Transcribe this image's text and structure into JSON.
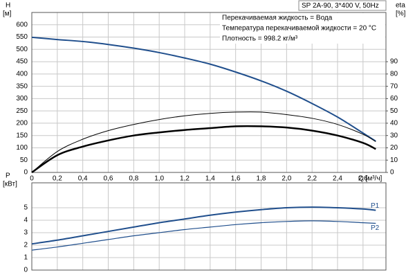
{
  "chart_data": [
    {
      "type": "line",
      "title": "SP 2A-90, 3*400 V, 50Hz",
      "annotations": [
        "Перекачиваемая жидкость = Вода",
        "Температура перекачиваемой жидкости = 20 °C",
        "Плотность = 998.2 кг/м³"
      ],
      "ylabel": "H",
      "yunit": "[м]",
      "y2label": "eta",
      "y2unit": "[%]",
      "xlabel": "Q [м³/ч]",
      "x": [
        0,
        0.2,
        0.4,
        0.6,
        0.8,
        1.0,
        1.2,
        1.4,
        1.6,
        1.8,
        2.0,
        2.2,
        2.4,
        2.6,
        2.7
      ],
      "xlim": [
        0,
        2.78
      ],
      "xticks": [
        0,
        {
          "value": 0.2,
          "label": "0,2"
        },
        {
          "value": 0.4,
          "label": "0,4"
        },
        {
          "value": 0.6,
          "label": "0,6"
        },
        {
          "value": 0.8,
          "label": "0,8"
        },
        {
          "value": 1.0,
          "label": "1,0"
        },
        {
          "value": 1.2,
          "label": "1,2"
        },
        {
          "value": 1.4,
          "label": "1,4"
        },
        {
          "value": 1.6,
          "label": "1,6"
        },
        {
          "value": 1.8,
          "label": "1,8"
        },
        {
          "value": 2.0,
          "label": "2,0"
        },
        {
          "value": 2.2,
          "label": "2,2"
        },
        {
          "value": 2.4,
          "label": "2,4"
        },
        {
          "value": 2.6,
          "label": "2,6"
        }
      ],
      "ylim": [
        0,
        650
      ],
      "yticks": [
        0,
        50,
        100,
        150,
        200,
        250,
        300,
        350,
        400,
        450,
        500,
        550,
        600
      ],
      "y2lim": [
        0,
        130
      ],
      "y2ticks": [
        0,
        10,
        20,
        30,
        40,
        50,
        60,
        70,
        80,
        90
      ],
      "grid": true,
      "series": [
        {
          "color": "#1f4e8c",
          "values": [
            549,
            540,
            532,
            520,
            505,
            487,
            465,
            440,
            408,
            372,
            330,
            280,
            225,
            160,
            127
          ]
        },
        {
          "color": "#000000",
          "axis": "y2",
          "values": [
            0,
            17,
            27,
            34,
            39,
            43,
            46,
            48,
            49,
            49,
            47,
            44,
            39,
            31,
            25
          ]
        },
        {
          "color": "#000000",
          "axis": "y2",
          "values": [
            0,
            14,
            21,
            26,
            30,
            32.5,
            34.5,
            36,
            37.5,
            37.5,
            36.5,
            34,
            30,
            24,
            19
          ]
        }
      ]
    },
    {
      "type": "line",
      "ylabel": "P",
      "yunit": "[кВт]",
      "ylim": [
        0,
        7
      ],
      "yticks": [
        0,
        1,
        2,
        3,
        4,
        5
      ],
      "grid": true,
      "series": [
        {
          "name": "P1",
          "color": "#1f4e8c",
          "values": [
            2.1,
            2.4,
            2.75,
            3.1,
            3.45,
            3.8,
            4.1,
            4.4,
            4.65,
            4.85,
            5.0,
            5.05,
            5.0,
            4.9,
            4.8
          ]
        },
        {
          "name": "P2",
          "color": "#1f4e8c",
          "values": [
            1.6,
            1.85,
            2.15,
            2.45,
            2.75,
            3.0,
            3.25,
            3.45,
            3.65,
            3.8,
            3.9,
            3.95,
            3.9,
            3.8,
            3.75
          ]
        }
      ]
    }
  ]
}
